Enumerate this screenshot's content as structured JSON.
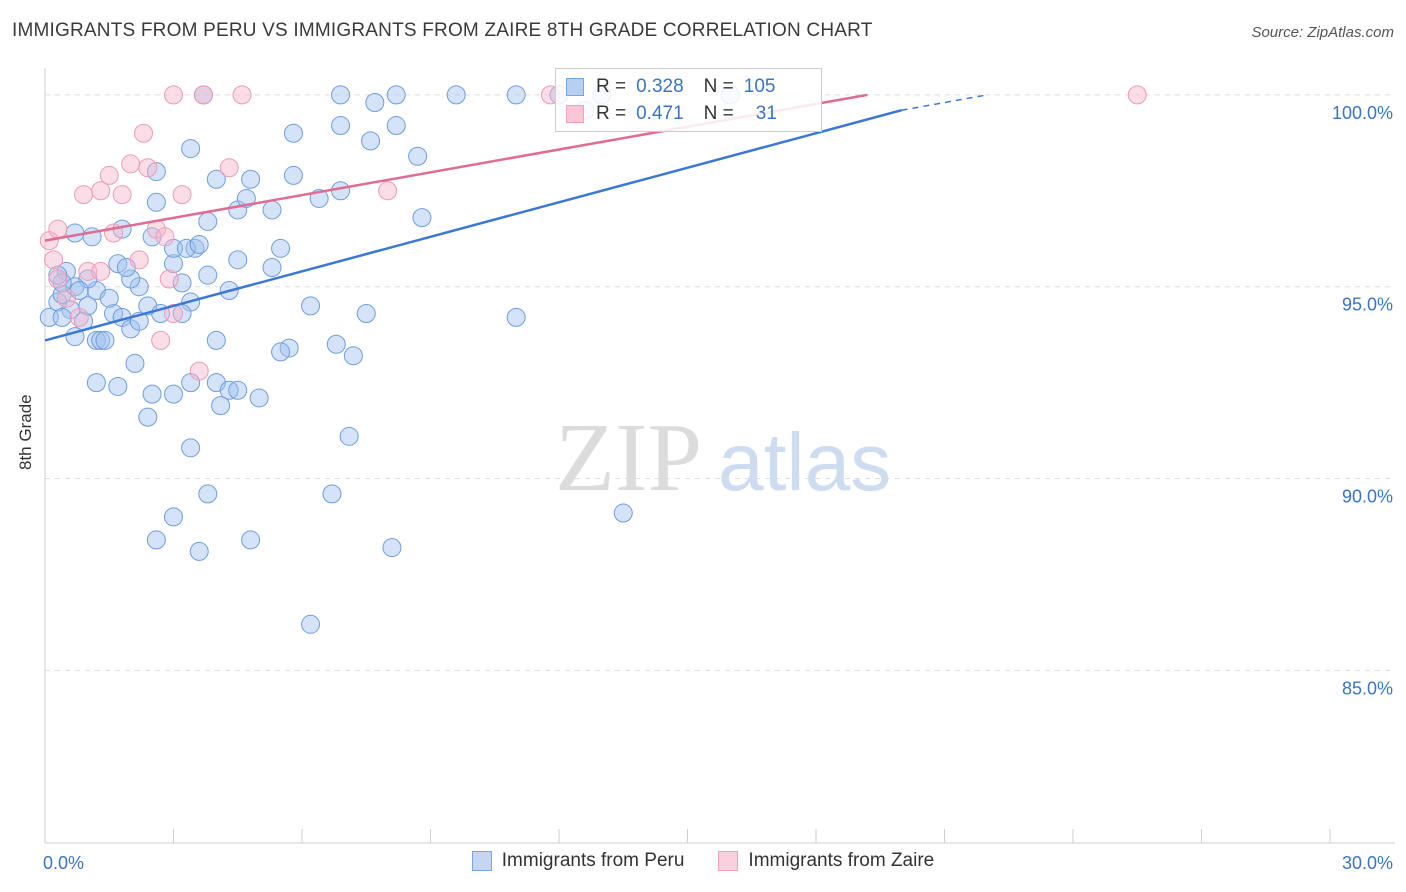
{
  "title": "IMMIGRANTS FROM PERU VS IMMIGRANTS FROM ZAIRE 8TH GRADE CORRELATION CHART",
  "source": "Source: ZipAtlas.com",
  "watermark": {
    "zip": "ZIP",
    "atlas": "atlas"
  },
  "legend": {
    "rows": [
      {
        "r_label": "R =",
        "r_value": "0.328",
        "n_label": "N =",
        "n_value": "105",
        "color": "#7aa6e0"
      },
      {
        "r_label": "R =",
        "r_value": "0.471",
        "n_label": "N =",
        "n_value": "31",
        "color": "#f0a0bb"
      }
    ]
  },
  "colors": {
    "peru": "#6f9de0",
    "zaire": "#ee9ab6",
    "peru_line": "#3a78d4",
    "zaire_line": "#e06b93",
    "accent_text": "#3b73c5"
  },
  "chart_data": {
    "type": "scatter",
    "title": "IMMIGRANTS FROM PERU VS IMMIGRANTS FROM ZAIRE 8TH GRADE CORRELATION CHART",
    "xlabel": "",
    "ylabel": "8th Grade",
    "xlim": [
      0,
      30
    ],
    "ylim": [
      80.5,
      100.7
    ],
    "x_ticks": [
      "0.0%",
      "30.0%"
    ],
    "y_ticks": [
      {
        "value": 100,
        "label": "100.0%"
      },
      {
        "value": 95,
        "label": "95.0%"
      },
      {
        "value": 90,
        "label": "90.0%"
      },
      {
        "value": 85,
        "label": "85.0%"
      }
    ],
    "grid": "horizontal dashed",
    "legend_position": "bottom-center",
    "series": [
      {
        "name": "Immigrants from Peru",
        "trend": {
          "x": [
            0,
            20
          ],
          "y": [
            93.6,
            99.6
          ],
          "dashed_to": [
            22,
            100.0
          ]
        },
        "points": [
          [
            0.1,
            94.2
          ],
          [
            0.3,
            94.6
          ],
          [
            0.4,
            94.8
          ],
          [
            0.5,
            95.4
          ],
          [
            0.6,
            94.4
          ],
          [
            0.7,
            96.4
          ],
          [
            0.9,
            94.1
          ],
          [
            0.7,
            93.7
          ],
          [
            1.0,
            94.5
          ],
          [
            1.2,
            93.6
          ],
          [
            1.3,
            93.6
          ],
          [
            1.4,
            93.6
          ],
          [
            1.2,
            94.9
          ],
          [
            1.0,
            95.2
          ],
          [
            1.6,
            94.3
          ],
          [
            1.8,
            94.2
          ],
          [
            2.0,
            93.9
          ],
          [
            2.2,
            95.0
          ],
          [
            2.4,
            94.5
          ],
          [
            2.7,
            94.3
          ],
          [
            3.0,
            95.6
          ],
          [
            3.2,
            95.1
          ],
          [
            3.4,
            94.6
          ],
          [
            3.5,
            96.0
          ],
          [
            3.8,
            95.3
          ],
          [
            4.0,
            93.6
          ],
          [
            4.5,
            95.7
          ],
          [
            4.3,
            94.9
          ],
          [
            2.5,
            92.2
          ],
          [
            3.0,
            92.2
          ],
          [
            1.2,
            92.5
          ],
          [
            1.7,
            92.4
          ],
          [
            2.1,
            93.0
          ],
          [
            2.4,
            91.6
          ],
          [
            3.4,
            92.5
          ],
          [
            4.0,
            92.5
          ],
          [
            4.3,
            92.3
          ],
          [
            4.5,
            92.3
          ],
          [
            5.0,
            92.1
          ],
          [
            4.1,
            91.9
          ],
          [
            3.4,
            90.8
          ],
          [
            3.8,
            89.6
          ],
          [
            3.0,
            89.0
          ],
          [
            2.6,
            88.4
          ],
          [
            3.6,
            88.1
          ],
          [
            4.8,
            88.4
          ],
          [
            6.7,
            89.6
          ],
          [
            6.2,
            86.2
          ],
          [
            6.2,
            94.5
          ],
          [
            7.5,
            94.3
          ],
          [
            6.8,
            93.5
          ],
          [
            5.7,
            93.4
          ],
          [
            5.5,
            93.3
          ],
          [
            7.2,
            93.2
          ],
          [
            7.1,
            91.1
          ],
          [
            8.1,
            88.2
          ],
          [
            11.0,
            94.2
          ],
          [
            13.5,
            89.1
          ],
          [
            5.5,
            96.0
          ],
          [
            5.3,
            95.5
          ],
          [
            2.5,
            96.3
          ],
          [
            3.0,
            96.0
          ],
          [
            1.8,
            96.5
          ],
          [
            1.1,
            96.3
          ],
          [
            3.8,
            96.7
          ],
          [
            2.6,
            97.2
          ],
          [
            4.5,
            97.0
          ],
          [
            4.7,
            97.3
          ],
          [
            5.3,
            97.0
          ],
          [
            6.4,
            97.3
          ],
          [
            6.9,
            97.5
          ],
          [
            8.8,
            96.8
          ],
          [
            1.7,
            95.6
          ],
          [
            2.0,
            95.2
          ],
          [
            0.7,
            95.0
          ],
          [
            0.4,
            95.1
          ],
          [
            3.3,
            96.0
          ],
          [
            3.6,
            96.1
          ],
          [
            2.6,
            98.0
          ],
          [
            3.4,
            98.6
          ],
          [
            4.0,
            97.8
          ],
          [
            4.8,
            97.8
          ],
          [
            5.8,
            97.9
          ],
          [
            5.8,
            99.0
          ],
          [
            6.9,
            99.2
          ],
          [
            7.6,
            98.8
          ],
          [
            8.2,
            99.2
          ],
          [
            8.7,
            98.4
          ],
          [
            6.9,
            100.0
          ],
          [
            7.7,
            99.8
          ],
          [
            8.2,
            100.0
          ],
          [
            9.6,
            100.0
          ],
          [
            11.0,
            100.0
          ],
          [
            12.0,
            100.0
          ],
          [
            12.6,
            99.6
          ],
          [
            13.0,
            100.0
          ],
          [
            16.0,
            100.0
          ],
          [
            3.7,
            100.0
          ],
          [
            0.4,
            94.2
          ],
          [
            0.3,
            95.3
          ],
          [
            1.5,
            94.7
          ],
          [
            0.8,
            94.9
          ],
          [
            2.2,
            94.1
          ],
          [
            1.9,
            95.5
          ],
          [
            3.2,
            94.3
          ]
        ]
      },
      {
        "name": "Immigrants from Zaire",
        "trend": {
          "x": [
            0,
            19.2
          ],
          "y": [
            96.2,
            100.0
          ]
        },
        "points": [
          [
            0.1,
            96.2
          ],
          [
            0.3,
            96.5
          ],
          [
            0.2,
            95.7
          ],
          [
            0.3,
            95.2
          ],
          [
            0.5,
            94.7
          ],
          [
            0.8,
            94.2
          ],
          [
            1.0,
            95.4
          ],
          [
            1.3,
            95.4
          ],
          [
            1.5,
            97.9
          ],
          [
            1.3,
            97.5
          ],
          [
            1.6,
            96.4
          ],
          [
            2.0,
            98.2
          ],
          [
            1.8,
            97.4
          ],
          [
            2.2,
            95.7
          ],
          [
            2.3,
            99.0
          ],
          [
            2.6,
            96.5
          ],
          [
            2.8,
            96.3
          ],
          [
            2.4,
            98.1
          ],
          [
            2.7,
            93.6
          ],
          [
            2.9,
            95.2
          ],
          [
            3.0,
            94.3
          ],
          [
            3.7,
            100.0
          ],
          [
            3.2,
            97.4
          ],
          [
            3.6,
            92.8
          ],
          [
            4.3,
            98.1
          ],
          [
            4.6,
            100.0
          ],
          [
            3.0,
            100.0
          ],
          [
            8.0,
            97.5
          ],
          [
            11.8,
            100.0
          ],
          [
            25.5,
            100.0
          ],
          [
            0.9,
            97.4
          ]
        ]
      }
    ]
  },
  "bottom_legend": [
    {
      "label": "Immigrants from Peru"
    },
    {
      "label": "Immigrants from Zaire"
    }
  ]
}
